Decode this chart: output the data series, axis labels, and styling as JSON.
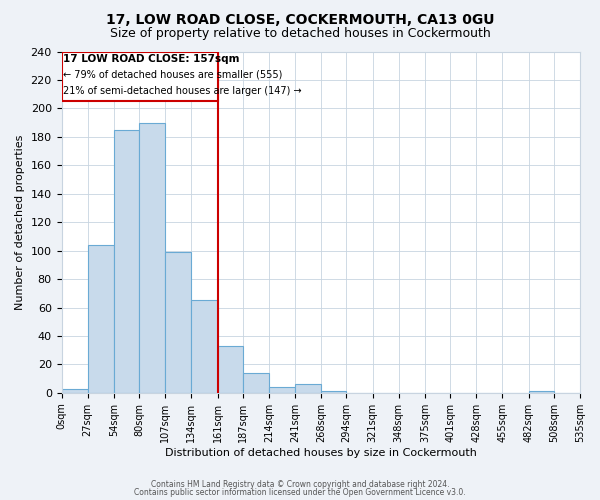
{
  "title": "17, LOW ROAD CLOSE, COCKERMOUTH, CA13 0GU",
  "subtitle": "Size of property relative to detached houses in Cockermouth",
  "xlabel": "Distribution of detached houses by size in Cockermouth",
  "ylabel": "Number of detached properties",
  "bin_edges": [
    0,
    27,
    54,
    80,
    107,
    134,
    161,
    187,
    214,
    241,
    268,
    294,
    321,
    348,
    375,
    401,
    428,
    455,
    482,
    508,
    535
  ],
  "counts": [
    3,
    104,
    185,
    190,
    99,
    65,
    33,
    14,
    4,
    6,
    1,
    0,
    0,
    0,
    0,
    0,
    0,
    0,
    1,
    0
  ],
  "bar_color": "#c8daeb",
  "bar_edge_color": "#6aaad4",
  "property_line_x": 161,
  "property_line_color": "#cc0000",
  "ann_line1": "17 LOW ROAD CLOSE: 157sqm",
  "ann_line2": "← 79% of detached houses are smaller (555)",
  "ann_line3": "21% of semi-detached houses are larger (147) →",
  "ylim": [
    0,
    240
  ],
  "yticks": [
    0,
    20,
    40,
    60,
    80,
    100,
    120,
    140,
    160,
    180,
    200,
    220,
    240
  ],
  "tick_labels": [
    "0sqm",
    "27sqm",
    "54sqm",
    "80sqm",
    "107sqm",
    "134sqm",
    "161sqm",
    "187sqm",
    "214sqm",
    "241sqm",
    "268sqm",
    "294sqm",
    "321sqm",
    "348sqm",
    "375sqm",
    "401sqm",
    "428sqm",
    "455sqm",
    "482sqm",
    "508sqm",
    "535sqm"
  ],
  "footnote1": "Contains HM Land Registry data © Crown copyright and database right 2024.",
  "footnote2": "Contains public sector information licensed under the Open Government Licence v3.0.",
  "bg_color": "#eef2f7",
  "plot_bg_color": "#ffffff",
  "grid_color": "#c8d4e0",
  "title_fontsize": 10,
  "subtitle_fontsize": 9
}
